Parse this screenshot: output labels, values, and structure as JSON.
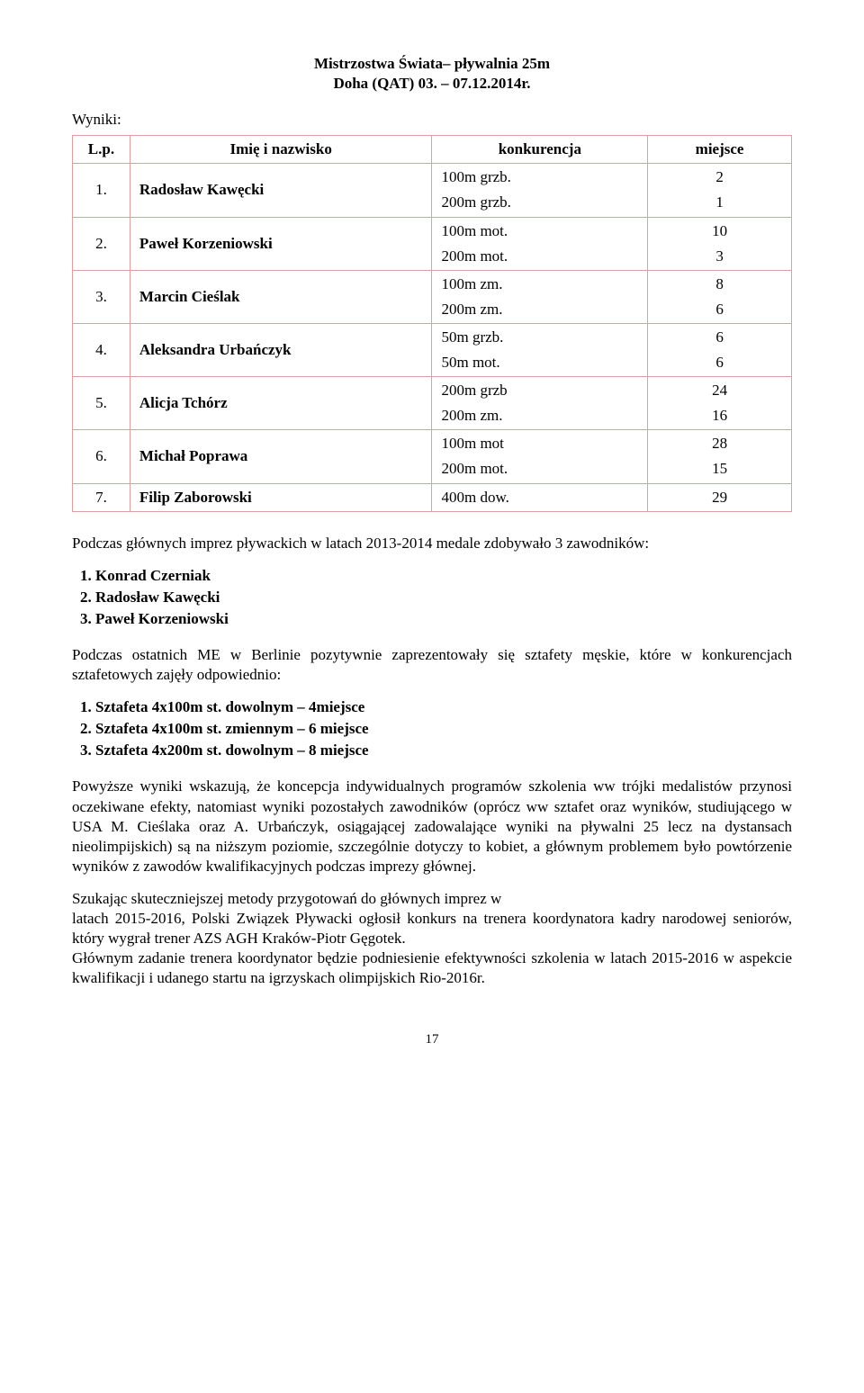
{
  "title": {
    "line1": "Mistrzostwa Świata– pływalnia 25m",
    "line2": "Doha (QAT) 03. – 07.12.2014r."
  },
  "left_label": "Wyniki:",
  "headers": {
    "lp": "L.p.",
    "name": "Imię i nazwisko",
    "event": "konkurencja",
    "place": "miejsce"
  },
  "rows": [
    {
      "lp": "1.",
      "name": "Radosław Kawęcki",
      "events": [
        "100m grzb.",
        "200m grzb."
      ],
      "places": [
        "2",
        "1"
      ]
    },
    {
      "lp": "2.",
      "name": "Paweł Korzeniowski",
      "events": [
        "100m mot.",
        "200m mot."
      ],
      "places": [
        "10",
        "3"
      ]
    },
    {
      "lp": "3.",
      "name": "Marcin Cieślak",
      "events": [
        "100m zm.",
        "200m zm."
      ],
      "places": [
        "8",
        "6"
      ]
    },
    {
      "lp": "4.",
      "name": "Aleksandra Urbańczyk",
      "events": [
        "50m grzb.",
        "50m mot."
      ],
      "places": [
        "6",
        "6"
      ]
    },
    {
      "lp": "5.",
      "name": "Alicja Tchórz",
      "events": [
        "200m grzb",
        "200m zm."
      ],
      "places": [
        "24",
        "16"
      ]
    },
    {
      "lp": "6.",
      "name": "Michał Poprawa",
      "events": [
        "100m mot",
        "200m mot."
      ],
      "places": [
        "28",
        "15"
      ]
    },
    {
      "lp": "7.",
      "name": "Filip Zaborowski",
      "events": [
        "400m dow."
      ],
      "places": [
        "29"
      ]
    }
  ],
  "intro1": "Podczas głównych imprez pływackich w latach 2013-2014 medale zdobywało 3 zawodników:",
  "medalists": [
    "Konrad Czerniak",
    "Radosław Kawęcki",
    "Paweł Korzeniowski"
  ],
  "intro2": "Podczas ostatnich ME w Berlinie pozytywnie zaprezentowały się sztafety męskie, które w konkurencjach sztafetowych zajęły odpowiednio:",
  "relays": [
    "Sztafeta 4x100m st. dowolnym – 4miejsce",
    "Sztafeta 4x100m st. zmiennym – 6 miejsce",
    "Sztafeta 4x200m st. dowolnym – 8 miejsce"
  ],
  "para1": "Powyższe wyniki wskazują, że koncepcja indywidualnych programów szkolenia ww trójki medalistów przynosi oczekiwane efekty, natomiast wyniki pozostałych zawodników (oprócz ww sztafet oraz wyników, studiującego w USA M. Cieślaka oraz A. Urbańczyk, osiągającej zadowalające wyniki na pływalni 25 lecz na dystansach nieolimpijskich) są na niższym poziomie, szczególnie dotyczy to kobiet, a głównym problemem było powtórzenie wyników z zawodów kwalifikacyjnych podczas imprezy głównej.",
  "para2a": "Szukając skuteczniejszej metody przygotowań do głównych imprez w",
  "para2b": "latach 2015-2016, Polski Związek Pływacki ogłosił konkurs na trenera koordynatora kadry narodowej seniorów, który wygrał trener AZS AGH Kraków-Piotr Gęgotek.",
  "para2c": "Głównym zadanie trenera koordynator będzie podniesienie efektywności szkolenia w latach 2015-2016 w aspekcie kwalifikacji i udanego startu na igrzyskach olimpijskich Rio-2016r.",
  "page": "17"
}
